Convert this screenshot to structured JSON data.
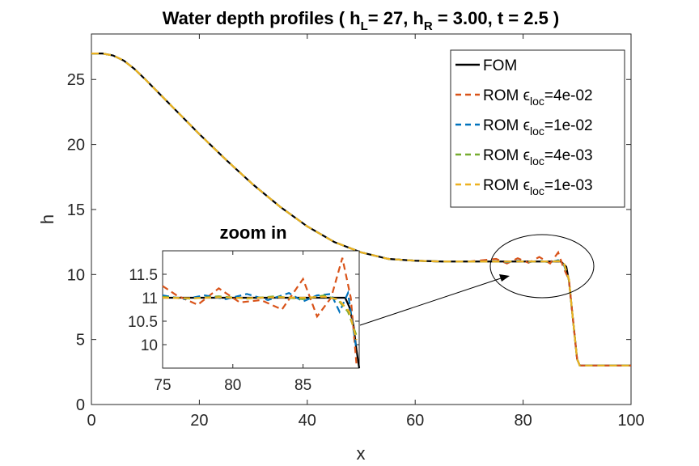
{
  "chart_data": {
    "type": "line",
    "title": "Water depth profiles ( h_L= 27, h_R = 3.00, t = 2.5 )",
    "title_parts": {
      "p1": "Water depth profiles ( h",
      "s1": "L",
      "p2": "= 27, h",
      "s2": "R",
      "p3": " = 3.00, t = 2.5 )"
    },
    "xlabel": "x",
    "ylabel": "h",
    "xlim": [
      0,
      100
    ],
    "ylim": [
      0,
      28.5
    ],
    "xticks": [
      "0",
      "20",
      "40",
      "60",
      "80",
      "100"
    ],
    "yticks": [
      "0",
      "5",
      "10",
      "15",
      "20",
      "25"
    ],
    "legend_position": "top-right",
    "colors": {
      "fom": "#000000",
      "rom1": "#D95319",
      "rom2": "#0072BD",
      "rom3": "#77AC30",
      "rom4": "#EDB120"
    },
    "series": [
      {
        "key": "fom",
        "name": "FOM",
        "legend_prefix": "FOM",
        "legend_sub": "",
        "legend_suffix": "",
        "style": "solid"
      },
      {
        "key": "rom1",
        "name": "ROM ε_loc=4e-02",
        "legend_prefix": "ROM ϵ",
        "legend_sub": "loc",
        "legend_suffix": "=4e-02",
        "style": "dashed"
      },
      {
        "key": "rom2",
        "name": "ROM ε_loc=1e-02",
        "legend_prefix": "ROM ϵ",
        "legend_sub": "loc",
        "legend_suffix": "=1e-02",
        "style": "dashed"
      },
      {
        "key": "rom3",
        "name": "ROM ε_loc=4e-03",
        "legend_prefix": "ROM ϵ",
        "legend_sub": "loc",
        "legend_suffix": "=4e-03",
        "style": "dashed"
      },
      {
        "key": "rom4",
        "name": "ROM ε_loc=1e-03",
        "legend_prefix": "ROM ϵ",
        "legend_sub": "loc",
        "legend_suffix": "=1e-03",
        "style": "dashed"
      }
    ],
    "fom_points": [
      [
        0,
        27.0
      ],
      [
        2,
        27.0
      ],
      [
        4,
        26.85
      ],
      [
        6,
        26.45
      ],
      [
        8,
        25.8
      ],
      [
        10,
        25.0
      ],
      [
        15,
        22.9
      ],
      [
        20,
        20.8
      ],
      [
        25,
        18.8
      ],
      [
        30,
        16.9
      ],
      [
        35,
        15.2
      ],
      [
        40,
        13.7
      ],
      [
        45,
        12.5
      ],
      [
        50,
        11.7
      ],
      [
        55,
        11.2
      ],
      [
        60,
        11.06
      ],
      [
        65,
        11.0
      ],
      [
        70,
        11.0
      ],
      [
        75,
        11.0
      ],
      [
        80,
        11.0
      ],
      [
        85,
        11.0
      ],
      [
        87,
        11.0
      ],
      [
        88,
        10.6
      ],
      [
        88.5,
        9.5
      ],
      [
        89,
        7.5
      ],
      [
        89.5,
        5.5
      ],
      [
        90,
        3.5
      ],
      [
        90.5,
        3.0
      ],
      [
        92,
        3.0
      ],
      [
        100,
        3.0
      ]
    ],
    "rom_wiggles": {
      "rom1": [
        [
          75,
          11.2
        ],
        [
          77,
          10.85
        ],
        [
          79,
          11.25
        ],
        [
          81,
          10.9
        ],
        [
          83,
          11.35
        ],
        [
          85,
          10.85
        ],
        [
          86.5,
          11.7
        ],
        [
          87.5,
          10.5
        ],
        [
          88.5,
          9.6
        ]
      ],
      "rom2": [
        [
          75,
          11.02
        ],
        [
          77,
          10.95
        ],
        [
          79,
          11.05
        ],
        [
          81,
          10.95
        ],
        [
          83,
          11.06
        ],
        [
          85,
          10.93
        ],
        [
          86.5,
          11.1
        ],
        [
          87.5,
          10.8
        ],
        [
          88.5,
          9.6
        ]
      ],
      "rom3": [
        [
          75,
          11.0
        ],
        [
          77,
          10.98
        ],
        [
          79,
          11.02
        ],
        [
          81,
          10.98
        ],
        [
          83,
          11.03
        ],
        [
          85,
          10.97
        ],
        [
          86.5,
          11.05
        ],
        [
          87.5,
          10.9
        ],
        [
          88.5,
          9.6
        ]
      ],
      "rom4": [
        [
          75,
          11.0
        ],
        [
          77,
          10.99
        ],
        [
          79,
          11.01
        ],
        [
          81,
          10.99
        ],
        [
          83,
          11.01
        ],
        [
          85,
          10.99
        ],
        [
          86.5,
          11.02
        ],
        [
          87.5,
          10.95
        ],
        [
          88.5,
          9.6
        ]
      ]
    },
    "inset": {
      "title": "zoom in",
      "xlim": [
        75,
        89
      ],
      "ylim": [
        9.5,
        12.0
      ],
      "xticks": [
        "75",
        "80",
        "85"
      ],
      "yticks": [
        "10",
        "10.5",
        "11",
        "11.5"
      ],
      "inset_points": {
        "fom": [
          [
            75,
            11.0
          ],
          [
            88.0,
            11.0
          ],
          [
            88.3,
            10.8
          ],
          [
            88.6,
            10.4
          ],
          [
            88.8,
            9.9
          ],
          [
            89,
            9.5
          ]
        ],
        "rom1": [
          [
            75,
            11.25
          ],
          [
            76,
            11.05
          ],
          [
            77.5,
            10.85
          ],
          [
            79,
            11.2
          ],
          [
            80.5,
            10.9
          ],
          [
            82,
            10.95
          ],
          [
            83.5,
            10.75
          ],
          [
            85,
            11.4
          ],
          [
            86,
            10.6
          ],
          [
            87,
            11.0
          ],
          [
            87.8,
            11.85
          ],
          [
            88.4,
            11.0
          ],
          [
            88.8,
            9.6
          ]
        ],
        "rom2": [
          [
            75,
            11.05
          ],
          [
            76.5,
            10.97
          ],
          [
            78,
            11.05
          ],
          [
            79.5,
            10.97
          ],
          [
            81,
            11.08
          ],
          [
            82.5,
            10.95
          ],
          [
            84,
            11.1
          ],
          [
            85,
            10.92
          ],
          [
            86,
            11.05
          ],
          [
            87,
            11.08
          ],
          [
            87.6,
            10.7
          ],
          [
            88.2,
            11.1
          ],
          [
            88.8,
            9.9
          ]
        ],
        "rom3": [
          [
            75,
            11.02
          ],
          [
            77,
            10.98
          ],
          [
            79,
            11.03
          ],
          [
            81,
            10.98
          ],
          [
            83,
            11.03
          ],
          [
            85,
            10.97
          ],
          [
            86.5,
            11.05
          ],
          [
            87.5,
            10.95
          ],
          [
            88.2,
            10.7
          ],
          [
            88.8,
            10.2
          ]
        ],
        "rom4": [
          [
            75,
            11.0
          ],
          [
            77,
            10.99
          ],
          [
            79,
            11.01
          ],
          [
            81,
            10.99
          ],
          [
            83,
            11.01
          ],
          [
            85,
            11.0
          ],
          [
            86.5,
            11.02
          ],
          [
            87.5,
            10.97
          ],
          [
            88.3,
            10.7
          ],
          [
            88.8,
            10.1
          ]
        ]
      }
    }
  }
}
